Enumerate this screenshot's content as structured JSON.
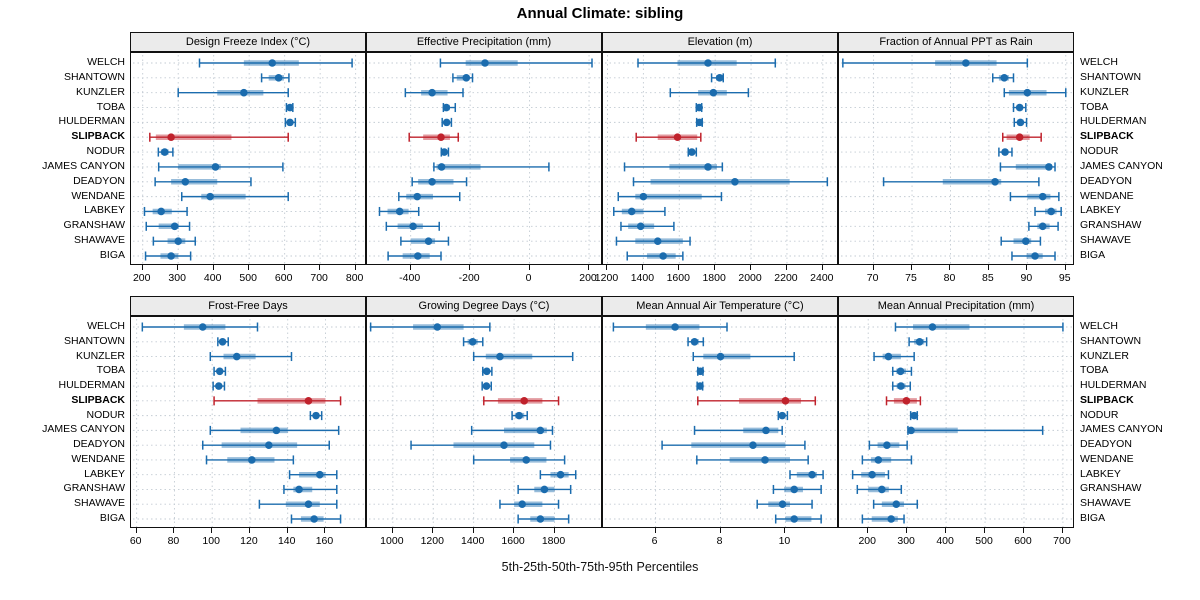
{
  "title": "Annual Climate: sibling",
  "caption": "5th-25th-50th-75th-95th Percentiles",
  "percentiles": [
    5,
    25,
    50,
    75,
    95
  ],
  "stations": [
    "WELCH",
    "SHANTOWN",
    "KUNZLER",
    "TOBA",
    "HULDERMAN",
    "SLIPBACK",
    "NODUR",
    "JAMES CANYON",
    "DEADYON",
    "WENDANE",
    "LABKEY",
    "GRANSHAW",
    "SHAWAVE",
    "BIGA"
  ],
  "highlight_station": "SLIPBACK",
  "colors": {
    "series": "#1b6cae",
    "highlight": "#c0222c",
    "grid": "#c3cbd3",
    "panel_header_bg": "#ebebeb",
    "panel_border": "#111111",
    "text": "#000000"
  },
  "chart_data": [
    {
      "type": "dotplot-range",
      "title": "Design Freeze Index (°C)",
      "xlim": [
        167,
        832
      ],
      "ticks": [
        200,
        300,
        400,
        500,
        600,
        700,
        800
      ],
      "values": [
        [
          360,
          485,
          565,
          640,
          790
        ],
        [
          535,
          555,
          583,
          598,
          612
        ],
        [
          300,
          410,
          485,
          540,
          610
        ],
        [
          605,
          610,
          615,
          619,
          623
        ],
        [
          602,
          608,
          615,
          622,
          630
        ],
        [
          220,
          237,
          280,
          450,
          610
        ],
        [
          244,
          251,
          262,
          273,
          285
        ],
        [
          245,
          300,
          405,
          420,
          595
        ],
        [
          235,
          280,
          320,
          410,
          505
        ],
        [
          310,
          365,
          390,
          490,
          610
        ],
        [
          205,
          228,
          252,
          282,
          325
        ],
        [
          210,
          245,
          290,
          302,
          332
        ],
        [
          230,
          270,
          300,
          320,
          348
        ],
        [
          208,
          250,
          280,
          300,
          335
        ]
      ]
    },
    {
      "type": "dotplot-range",
      "title": "Effective Precipitation (mm)",
      "xlim": [
        -547,
        247
      ],
      "ticks": [
        -400,
        -200,
        0,
        200
      ],
      "values": [
        [
          -300,
          -215,
          -150,
          -40,
          210
        ],
        [
          -258,
          -245,
          -213,
          -203,
          -192
        ],
        [
          -418,
          -365,
          -328,
          -276,
          -224
        ],
        [
          -290,
          -286,
          -280,
          -268,
          -250
        ],
        [
          -294,
          -288,
          -279,
          -270,
          -263
        ],
        [
          -405,
          -358,
          -298,
          -268,
          -240
        ],
        [
          -297,
          -292,
          -287,
          -281,
          -273
        ],
        [
          -322,
          -313,
          -296,
          -165,
          65
        ],
        [
          -395,
          -375,
          -328,
          -256,
          -212
        ],
        [
          -440,
          -415,
          -378,
          -325,
          -235
        ],
        [
          -505,
          -478,
          -437,
          -407,
          -373
        ],
        [
          -482,
          -444,
          -392,
          -359,
          -304
        ],
        [
          -433,
          -400,
          -340,
          -318,
          -273
        ],
        [
          -476,
          -427,
          -376,
          -336,
          -298
        ]
      ]
    },
    {
      "type": "dotplot-range",
      "title": "Elevation (m)",
      "xlim": [
        1175,
        2490
      ],
      "ticks": [
        1200,
        1400,
        1600,
        1800,
        2000,
        2200,
        2400
      ],
      "values": [
        [
          1370,
          1590,
          1760,
          1920,
          2135
        ],
        [
          1780,
          1805,
          1825,
          1835,
          1845
        ],
        [
          1550,
          1705,
          1790,
          1865,
          1985
        ],
        [
          1695,
          1703,
          1711,
          1718,
          1725
        ],
        [
          1697,
          1705,
          1713,
          1720,
          1728
        ],
        [
          1360,
          1480,
          1590,
          1700,
          1720
        ],
        [
          1650,
          1660,
          1670,
          1683,
          1695
        ],
        [
          1295,
          1545,
          1760,
          1810,
          1840
        ],
        [
          1345,
          1440,
          1910,
          2215,
          2425
        ],
        [
          1260,
          1355,
          1400,
          1725,
          1835
        ],
        [
          1235,
          1280,
          1335,
          1400,
          1520
        ],
        [
          1275,
          1315,
          1385,
          1460,
          1570
        ],
        [
          1250,
          1355,
          1480,
          1620,
          1660
        ],
        [
          1310,
          1420,
          1510,
          1580,
          1620
        ]
      ]
    },
    {
      "type": "dotplot-range",
      "title": "Fraction of Annual PPT as Rain",
      "xlim": [
        65.5,
        96.2
      ],
      "ticks": [
        70,
        75,
        80,
        85,
        90,
        95
      ],
      "values": [
        [
          66,
          78,
          82,
          86,
          90
        ],
        [
          85.5,
          86.3,
          87,
          87.6,
          88.2
        ],
        [
          87,
          87.6,
          90,
          92.5,
          95
        ],
        [
          88.2,
          88.6,
          89,
          89.4,
          89.8
        ],
        [
          88.3,
          88.7,
          89.1,
          89.5,
          89.9
        ],
        [
          86.8,
          87.3,
          89,
          90.3,
          91.8
        ],
        [
          86.3,
          86.7,
          87.1,
          87.5,
          88
        ],
        [
          86.5,
          88.5,
          92.8,
          93.2,
          93.6
        ],
        [
          71.3,
          79,
          85.8,
          86.6,
          91.5
        ],
        [
          87.8,
          90,
          92,
          93,
          94.1
        ],
        [
          91,
          92.3,
          93.1,
          93.8,
          94.4
        ],
        [
          90.2,
          91.3,
          92,
          92.9,
          94
        ],
        [
          86.6,
          88.2,
          89.8,
          90.5,
          91.7
        ],
        [
          88,
          89.9,
          91,
          92,
          93.6
        ]
      ]
    },
    {
      "type": "dotplot-range",
      "title": "Frost-Free Days",
      "xlim": [
        57,
        182
      ],
      "ticks": [
        60,
        80,
        100,
        120,
        140,
        160
      ],
      "values": [
        [
          63,
          85,
          95,
          107,
          124
        ],
        [
          103,
          104,
          105.5,
          107,
          108.5
        ],
        [
          99,
          106,
          113,
          123,
          142
        ],
        [
          101,
          102.5,
          104,
          105.5,
          107
        ],
        [
          100.5,
          102,
          103.5,
          105,
          106.5
        ],
        [
          101,
          124,
          151,
          160,
          168
        ],
        [
          152,
          153.5,
          155,
          156.5,
          158
        ],
        [
          99,
          115,
          134,
          140,
          167
        ],
        [
          95,
          105,
          130,
          145,
          162
        ],
        [
          97,
          108,
          121,
          133,
          143
        ],
        [
          141,
          146,
          157,
          160,
          166
        ],
        [
          138,
          143,
          146,
          153,
          166
        ],
        [
          125,
          139,
          151,
          157,
          166
        ],
        [
          142,
          147,
          154,
          159,
          168
        ]
      ]
    },
    {
      "type": "dotplot-range",
      "title": "Growing Degree Days (°C)",
      "xlim": [
        872,
        2040
      ],
      "ticks": [
        1000,
        1200,
        1400,
        1600,
        1800
      ],
      "values": [
        [
          890,
          1100,
          1220,
          1350,
          1480
        ],
        [
          1350,
          1370,
          1395,
          1420,
          1445
        ],
        [
          1400,
          1460,
          1530,
          1690,
          1890
        ],
        [
          1445,
          1455,
          1465,
          1478,
          1490
        ],
        [
          1442,
          1452,
          1463,
          1475,
          1487
        ],
        [
          1450,
          1520,
          1650,
          1740,
          1820
        ],
        [
          1590,
          1605,
          1625,
          1650,
          1665
        ],
        [
          1390,
          1550,
          1730,
          1762,
          1790
        ],
        [
          1090,
          1300,
          1550,
          1700,
          1780
        ],
        [
          1400,
          1580,
          1660,
          1760,
          1850
        ],
        [
          1730,
          1780,
          1830,
          1870,
          1905
        ],
        [
          1620,
          1700,
          1750,
          1800,
          1880
        ],
        [
          1530,
          1600,
          1640,
          1740,
          1820
        ],
        [
          1620,
          1680,
          1730,
          1800,
          1870
        ]
      ]
    },
    {
      "type": "dotplot-range",
      "title": "Mean Annual Air Temperature (°C)",
      "xlim": [
        4.38,
        11.65
      ],
      "ticks": [
        6,
        8,
        10
      ],
      "values": [
        [
          4.7,
          5.7,
          6.6,
          7.35,
          8.2
        ],
        [
          7.0,
          7.1,
          7.2,
          7.33,
          7.47
        ],
        [
          7.16,
          7.47,
          8.0,
          8.92,
          10.27
        ],
        [
          7.3,
          7.34,
          7.38,
          7.42,
          7.46
        ],
        [
          7.28,
          7.33,
          7.37,
          7.41,
          7.45
        ],
        [
          7.3,
          8.57,
          10.0,
          10.48,
          10.92
        ],
        [
          9.78,
          9.84,
          9.9,
          9.98,
          10.06
        ],
        [
          7.2,
          8.7,
          9.4,
          9.78,
          9.9
        ],
        [
          6.2,
          7.1,
          9.0,
          10.0,
          10.6
        ],
        [
          7.27,
          8.28,
          9.37,
          10.14,
          10.7
        ],
        [
          10.14,
          10.35,
          10.82,
          10.97,
          11.16
        ],
        [
          9.63,
          9.96,
          10.27,
          10.54,
          11.1
        ],
        [
          9.13,
          9.47,
          9.91,
          10.14,
          10.82
        ],
        [
          9.7,
          10.0,
          10.27,
          10.8,
          11.1
        ]
      ]
    },
    {
      "type": "dotplot-range",
      "title": "Mean Annual Precipitation (mm)",
      "xlim": [
        125,
        731
      ],
      "ticks": [
        200,
        300,
        400,
        500,
        600,
        700
      ],
      "values": [
        [
          270,
          315,
          365,
          460,
          700
        ],
        [
          305,
          318,
          332,
          344,
          350
        ],
        [
          215,
          237,
          252,
          284,
          318
        ],
        [
          263,
          272,
          283,
          297,
          311
        ],
        [
          263,
          273,
          284,
          296,
          308
        ],
        [
          247,
          266,
          298,
          325,
          334
        ],
        [
          309,
          312,
          318,
          323,
          326
        ],
        [
          302,
          306,
          310,
          430,
          648
        ],
        [
          203,
          224,
          248,
          280,
          300
        ],
        [
          185,
          207,
          226,
          259,
          311
        ],
        [
          160,
          182,
          210,
          243,
          252
        ],
        [
          172,
          200,
          235,
          253,
          285
        ],
        [
          214,
          235,
          272,
          292,
          326
        ],
        [
          185,
          209,
          259,
          276,
          292
        ]
      ]
    }
  ]
}
